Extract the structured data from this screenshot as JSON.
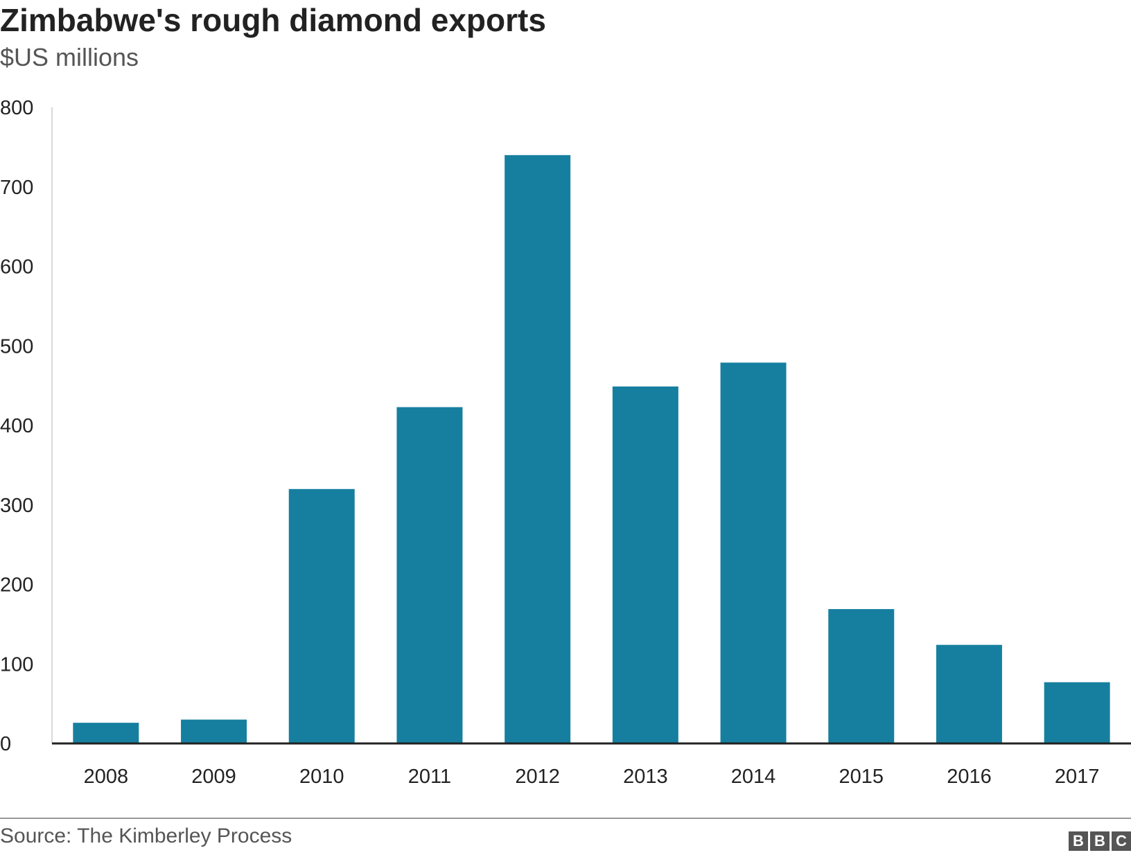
{
  "header": {
    "title": "Zimbabwe's rough diamond exports",
    "subtitle": "$US millions"
  },
  "footer": {
    "source": "Source: The Kimberley Process",
    "logo_letters": [
      "B",
      "B",
      "C"
    ]
  },
  "colors": {
    "bar": "#167fa0",
    "axis": "#222222",
    "logo_box": "#555555"
  },
  "chart_data": {
    "type": "bar",
    "title": "Zimbabwe's rough diamond exports",
    "subtitle": "$US millions",
    "categories": [
      "2008",
      "2009",
      "2010",
      "2011",
      "2012",
      "2013",
      "2014",
      "2015",
      "2016",
      "2017"
    ],
    "values": [
      26,
      30,
      320,
      423,
      740,
      449,
      479,
      169,
      124,
      77
    ],
    "ylim": [
      0,
      800
    ],
    "yticks": [
      0,
      100,
      200,
      300,
      400,
      500,
      600,
      700,
      800
    ],
    "xlabel": "",
    "ylabel": "",
    "grid": false,
    "legend": "none"
  }
}
